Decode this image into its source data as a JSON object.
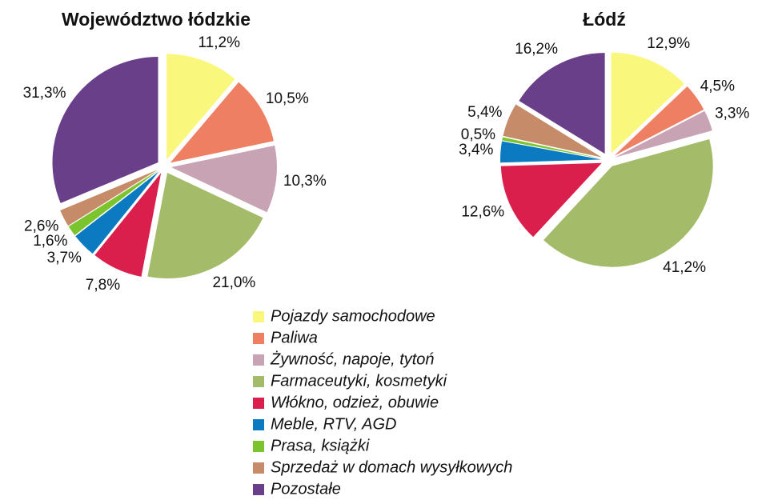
{
  "chart_data": [
    {
      "type": "pie",
      "title": "Województwo łódzkie",
      "categories": [
        "Pojazdy samochodowe",
        "Paliwa",
        "Żywność, napoje, tytoń",
        "Farmaceutyki, kosmetyki",
        "Włókno, odzież, obuwie",
        "Meble, RTV, AGD",
        "Prasa, książki",
        "Sprzedaż w domach wysyłkowych",
        "Pozostałe"
      ],
      "colors": [
        "#f9f77c",
        "#ee7f62",
        "#c8a3b3",
        "#a4bc6a",
        "#db1f4d",
        "#0b7ac1",
        "#7cc42d",
        "#c68b68",
        "#6a3f8a"
      ],
      "values": [
        11.2,
        10.5,
        10.3,
        21.0,
        7.8,
        3.7,
        1.6,
        2.6,
        31.3
      ],
      "value_labels": [
        "11,2%",
        "10,5%",
        "10,3%",
        "21,0%",
        "7,8%",
        "3,7%",
        "1,6%",
        "2,6%",
        "31,3%"
      ]
    },
    {
      "type": "pie",
      "title": "Łódź",
      "values": [
        12.9,
        4.5,
        3.3,
        41.2,
        12.6,
        3.4,
        0.5,
        5.4,
        16.2
      ],
      "value_labels": [
        "12,9%",
        "4,5%",
        "3,3%",
        "41,2%",
        "12,6%",
        "3,4%",
        "0,5%",
        "5,4%",
        "16,2%"
      ]
    }
  ]
}
